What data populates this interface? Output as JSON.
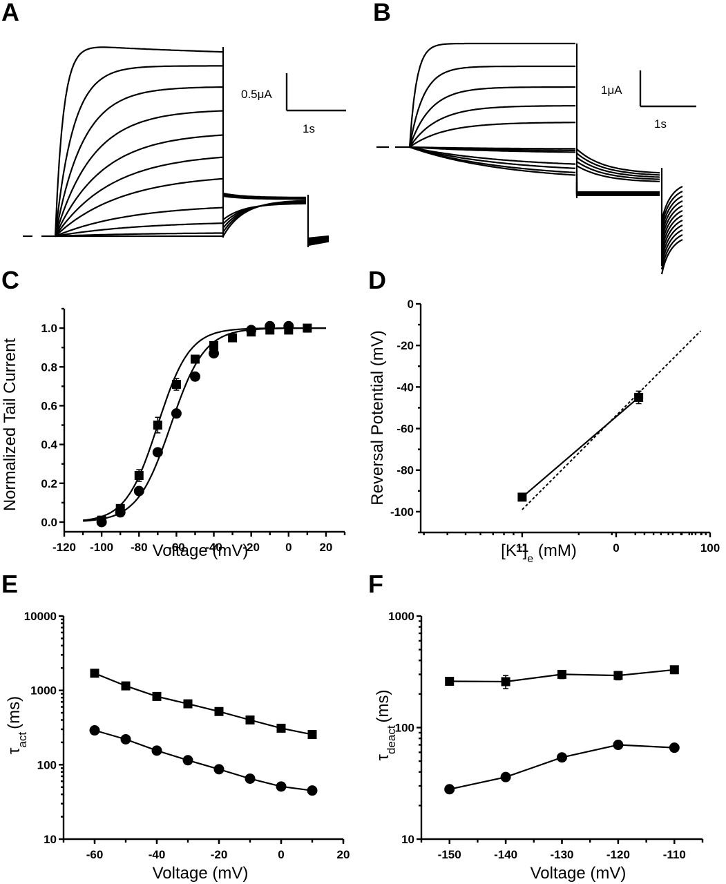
{
  "figure": {
    "panels": [
      "A",
      "B",
      "C",
      "D",
      "E",
      "F"
    ]
  },
  "chart_data": [
    {
      "panel": "A",
      "type": "line",
      "title": "",
      "description": "Current traces (voltage-clamp family)",
      "scale_bar": {
        "current_label": "0.5μA",
        "time_label": "1s"
      },
      "trace_count": 11,
      "relative_steady_amplitudes": [
        1.0,
        0.9,
        0.79,
        0.67,
        0.55,
        0.44,
        0.33,
        0.17,
        0.08,
        0.02,
        0.0
      ]
    },
    {
      "panel": "B",
      "type": "line",
      "title": "",
      "description": "Current traces (voltage-clamp family, outward and inward)",
      "scale_bar": {
        "current_label": "1μA",
        "time_label": "1s"
      },
      "trace_count": 12,
      "relative_step_amplitudes": [
        1.0,
        0.78,
        0.58,
        0.4,
        0.24,
        -0.02,
        -0.04,
        -0.06,
        -0.2,
        -0.25,
        -0.3,
        -0.33
      ]
    },
    {
      "panel": "C",
      "type": "scatter",
      "xlabel": "Voltage (mV)",
      "ylabel": "Normalized Tail Current",
      "xlim": [
        -120,
        30
      ],
      "ylim": [
        -0.05,
        1.1
      ],
      "xticks": [
        "-120",
        "-100",
        "-80",
        "-60",
        "-40",
        "-20",
        "0",
        "20"
      ],
      "yticks": [
        "0.0",
        "0.2",
        "0.4",
        "0.6",
        "0.8",
        "1.0"
      ],
      "series": [
        {
          "name": "squares",
          "marker": "square",
          "x": [
            -100,
            -90,
            -80,
            -70,
            -60,
            -50,
            -40,
            -30,
            -20,
            -10,
            0,
            10
          ],
          "y": [
            0.01,
            0.07,
            0.24,
            0.5,
            0.71,
            0.84,
            0.91,
            0.95,
            0.98,
            0.99,
            0.99,
            1.0
          ],
          "err": [
            0.01,
            0.01,
            0.03,
            0.04,
            0.03,
            0.01,
            0.01,
            0.01,
            0.01,
            0.01,
            0.01,
            0.01
          ],
          "fit": {
            "type": "boltzmann",
            "v_half": -70,
            "k": 8.5,
            "range": [
              -110,
              20
            ]
          }
        },
        {
          "name": "circles",
          "marker": "circle",
          "x": [
            -100,
            -90,
            -80,
            -70,
            -60,
            -50,
            -40,
            -20,
            -10,
            0
          ],
          "y": [
            0.0,
            0.05,
            0.16,
            0.36,
            0.56,
            0.75,
            0.87,
            0.99,
            1.01,
            1.01
          ],
          "err": [
            0,
            0,
            0,
            0,
            0,
            0,
            0,
            0,
            0,
            0
          ],
          "fit": {
            "type": "boltzmann",
            "v_half": -63,
            "k": 9.0,
            "range": [
              -110,
              20
            ]
          }
        }
      ]
    },
    {
      "panel": "D",
      "type": "scatter",
      "xlabel": "[K+]e (mM)",
      "ylabel": "Reversal Potential (mV)",
      "xscale": "log",
      "xlim_log10": [
        0.46,
        2.0
      ],
      "ylim": [
        -110,
        0
      ],
      "xticks": [
        "11",
        "0",
        "100"
      ],
      "yticks": [
        "0",
        "-20",
        "-40",
        "-60",
        "-80",
        "-100"
      ],
      "series": [
        {
          "name": "measured",
          "marker": "square",
          "x_log10": [
            1.0,
            1.62
          ],
          "y": [
            -93,
            -45
          ],
          "err": [
            0,
            3
          ],
          "line": "solid"
        },
        {
          "name": "nernst",
          "marker": "none",
          "x_log10": [
            1.0,
            1.95
          ],
          "y": [
            -99,
            -13
          ],
          "line": "dashed"
        }
      ]
    },
    {
      "panel": "E",
      "type": "line",
      "xlabel": "Voltage (mV)",
      "ylabel": "τact (ms)",
      "ylabel_main": "τ",
      "ylabel_sub": "act",
      "ylabel_unit": "(ms)",
      "yscale": "log",
      "xlim": [
        -70,
        20
      ],
      "ylim": [
        10,
        10000
      ],
      "xticks": [
        "-60",
        "-40",
        "-20",
        "0",
        "20"
      ],
      "yticks": [
        "10",
        "100",
        "1000",
        "10000"
      ],
      "series": [
        {
          "name": "squares",
          "marker": "square",
          "x": [
            -60,
            -50,
            -40,
            -30,
            -20,
            -10,
            0,
            10
          ],
          "y": [
            1700,
            1150,
            830,
            660,
            520,
            400,
            310,
            255
          ]
        },
        {
          "name": "circles",
          "marker": "circle",
          "x": [
            -60,
            -50,
            -40,
            -30,
            -20,
            -10,
            0,
            10
          ],
          "y": [
            290,
            220,
            155,
            115,
            87,
            65,
            51,
            45
          ]
        }
      ]
    },
    {
      "panel": "F",
      "type": "line",
      "xlabel": "Voltage (mV)",
      "ylabel": "τdeact (ms)",
      "ylabel_main": "τ",
      "ylabel_sub": "deact",
      "ylabel_unit": "(ms)",
      "yscale": "log",
      "xlim": [
        -155,
        -105
      ],
      "ylim": [
        10,
        1000
      ],
      "xticks": [
        "-150",
        "-140",
        "-130",
        "-120",
        "-110"
      ],
      "yticks": [
        "10",
        "100",
        "1000"
      ],
      "series": [
        {
          "name": "squares",
          "marker": "square",
          "x": [
            -150,
            -140,
            -130,
            -120,
            -110
          ],
          "y": [
            260,
            258,
            300,
            293,
            330
          ],
          "err": [
            20,
            35,
            25,
            25,
            25
          ]
        },
        {
          "name": "circles",
          "marker": "circle",
          "x": [
            -150,
            -140,
            -130,
            -120,
            -110
          ],
          "y": [
            28,
            36,
            54,
            70,
            66
          ]
        }
      ]
    }
  ]
}
